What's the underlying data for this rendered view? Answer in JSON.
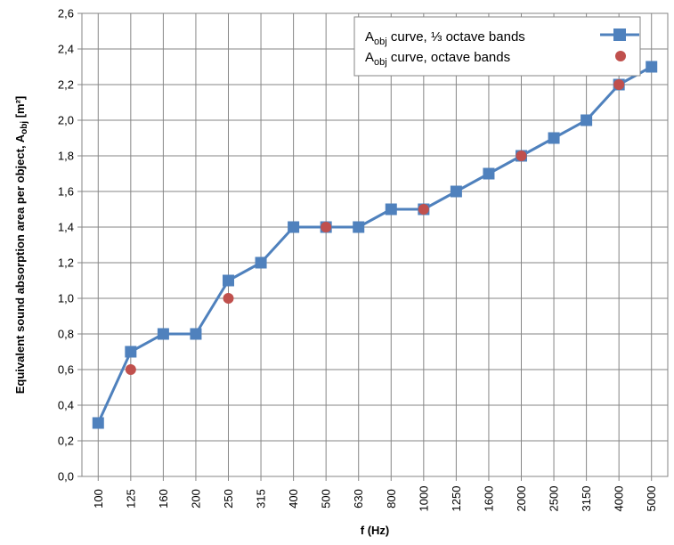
{
  "chart_data": {
    "type": "line",
    "xlabel": "f (Hz)",
    "ylabel": "Equivalent sound absorption area per object, A",
    "ylabel_sub": "obj",
    "ylabel_unit": " [m²]",
    "ylim": [
      0,
      2.6
    ],
    "ystep": 0.2,
    "grid": true,
    "legend_position": "top-right",
    "categories": [
      "100",
      "125",
      "160",
      "200",
      "250",
      "315",
      "400",
      "500",
      "630",
      "800",
      "1000",
      "1250",
      "1600",
      "2000",
      "2500",
      "3150",
      "4000",
      "5000"
    ],
    "yticks": [
      "0,0",
      "0,2",
      "0,4",
      "0,6",
      "0,8",
      "1,0",
      "1,2",
      "1,4",
      "1,6",
      "1,8",
      "2,0",
      "2,2",
      "2,4",
      "2,6"
    ],
    "series": [
      {
        "name_main": "A",
        "name_sub": "obj",
        "name_rest": " curve, ⅓ octave bands",
        "marker": "square",
        "color": "#4f81bd",
        "x": [
          "100",
          "125",
          "160",
          "200",
          "250",
          "315",
          "400",
          "500",
          "630",
          "800",
          "1000",
          "1250",
          "1600",
          "2000",
          "2500",
          "3150",
          "4000",
          "5000"
        ],
        "values": [
          0.3,
          0.7,
          0.8,
          0.8,
          1.1,
          1.2,
          1.4,
          1.4,
          1.4,
          1.5,
          1.5,
          1.6,
          1.7,
          1.8,
          1.9,
          2.0,
          2.2,
          2.3
        ]
      },
      {
        "name_main": "A",
        "name_sub": "obj",
        "name_rest": " curve, octave bands",
        "marker": "circle",
        "color": "#c0504d",
        "x": [
          "125",
          "250",
          "500",
          "1000",
          "2000",
          "4000"
        ],
        "values": [
          0.6,
          1.0,
          1.4,
          1.5,
          1.8,
          2.2
        ]
      }
    ]
  }
}
